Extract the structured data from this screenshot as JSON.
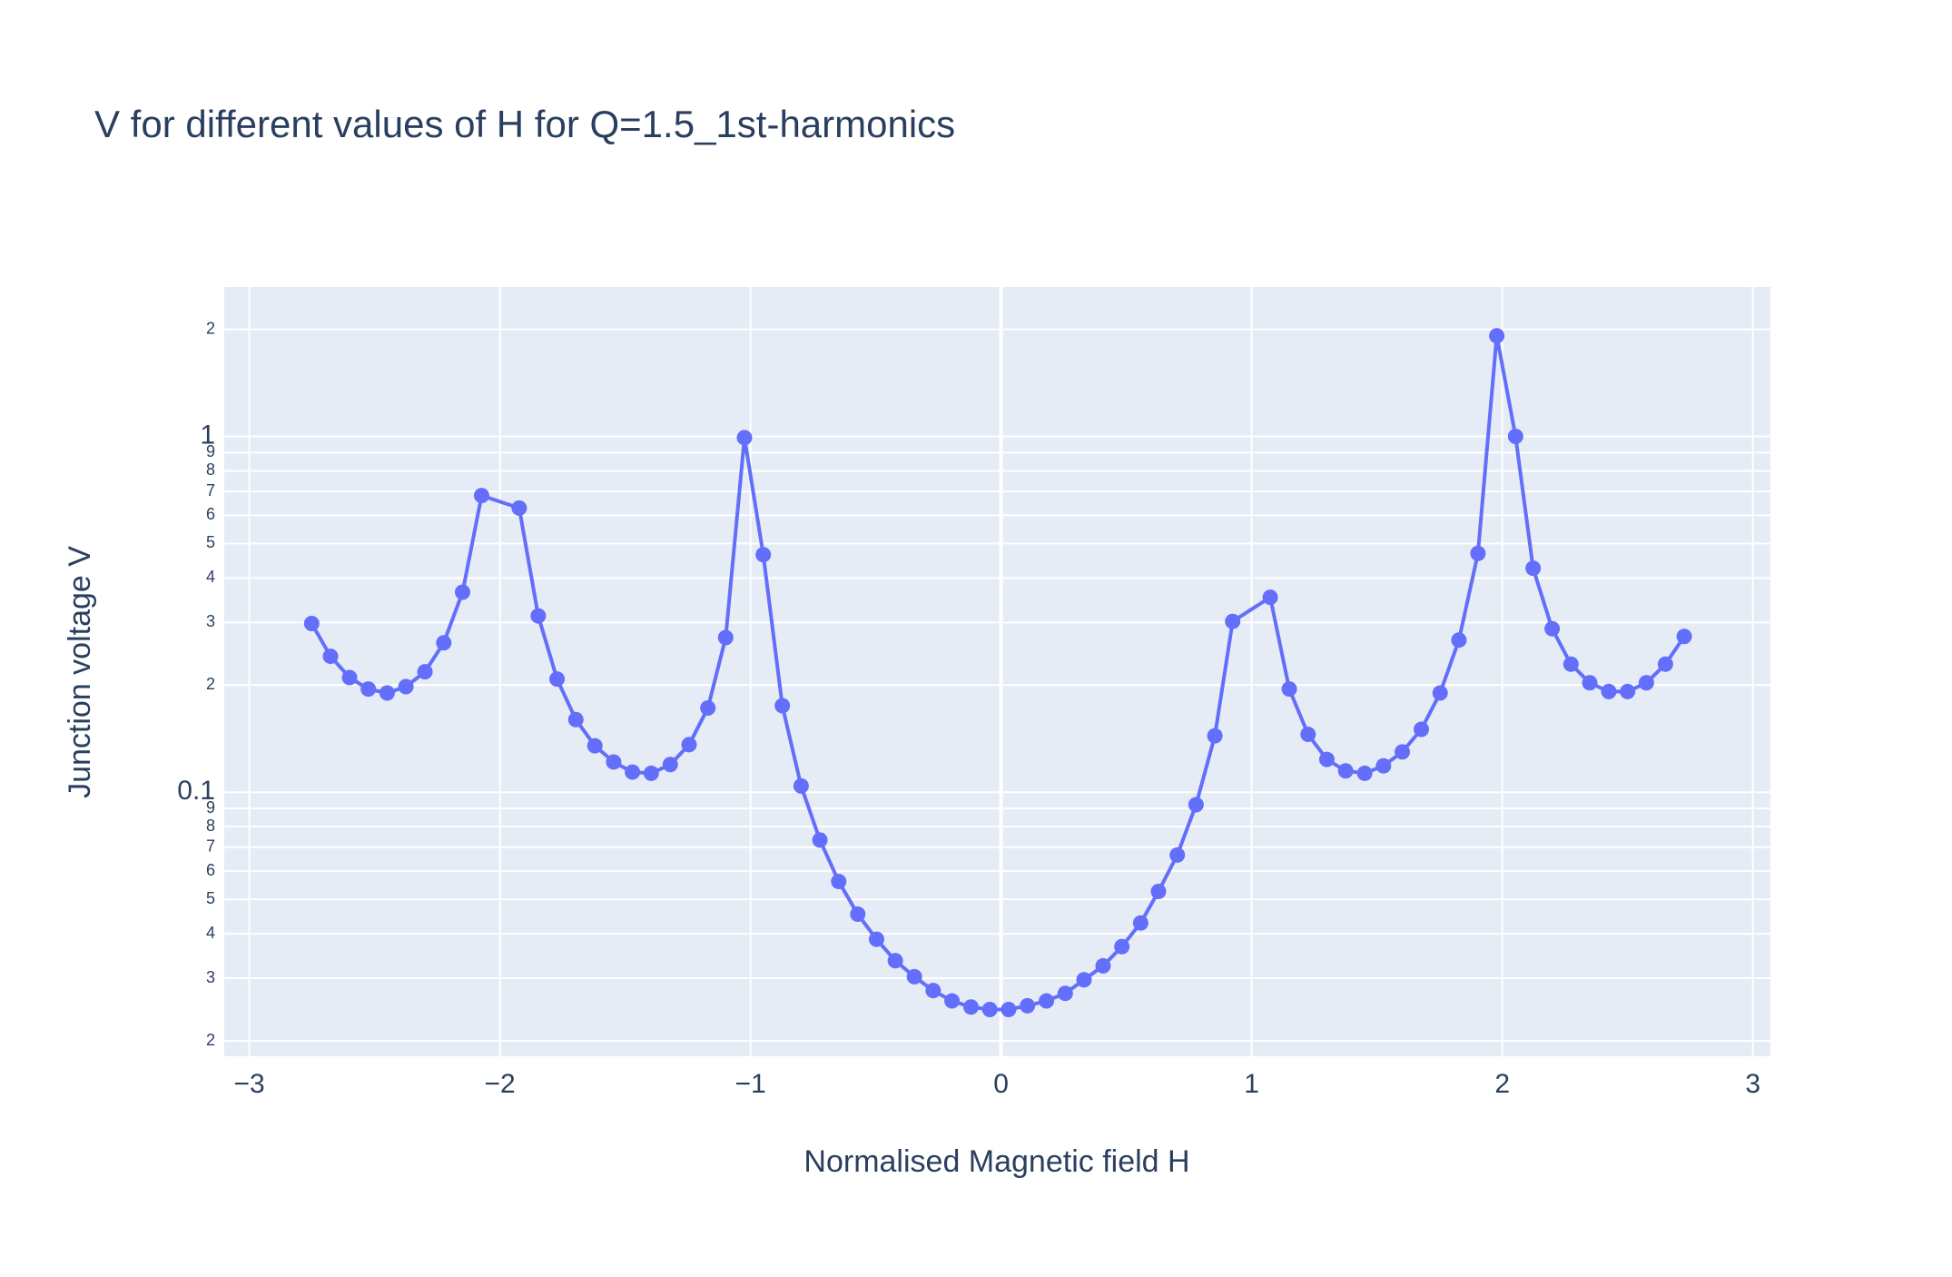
{
  "chart_data": {
    "type": "line",
    "title": "V for different values of H for Q=1.5_1st-harmonics",
    "x_label": "Normalised Magnetic field H",
    "y_label": "Junction voltage V",
    "color": "#636efa",
    "log_y": true,
    "grid": true,
    "xlim": [
      -3.1,
      3.07
    ],
    "ylim": [
      0.0181,
      2.63
    ],
    "xticks": [
      {
        "value": -3,
        "label": "−3"
      },
      {
        "value": -2,
        "label": "−2"
      },
      {
        "value": -1,
        "label": "−1"
      },
      0,
      1,
      2,
      3
    ],
    "yticks": [
      {
        "value": 0.02,
        "label": "2"
      },
      {
        "value": 0.03,
        "label": "3"
      },
      {
        "value": 0.04,
        "label": "4"
      },
      {
        "value": 0.05,
        "label": "5"
      },
      {
        "value": 0.06,
        "label": "6"
      },
      {
        "value": 0.07,
        "label": "7"
      },
      {
        "value": 0.08,
        "label": "8"
      },
      {
        "value": 0.09,
        "label": "9"
      },
      0.1,
      {
        "value": 0.2,
        "label": "2"
      },
      {
        "value": 0.3,
        "label": "3"
      },
      {
        "value": 0.4,
        "label": "4"
      },
      {
        "value": 0.5,
        "label": "5"
      },
      {
        "value": 0.6,
        "label": "6"
      },
      {
        "value": 0.7,
        "label": "7"
      },
      {
        "value": 0.8,
        "label": "8"
      },
      {
        "value": 0.9,
        "label": "9"
      },
      1,
      {
        "value": 2,
        "label": "2"
      }
    ],
    "x": [
      -2.751,
      -2.676,
      -2.6,
      -2.525,
      -2.45,
      -2.375,
      -2.299,
      -2.224,
      -2.149,
      -2.073,
      -1.923,
      -1.847,
      -1.772,
      -1.697,
      -1.621,
      -1.546,
      -1.471,
      -1.396,
      -1.32,
      -1.245,
      -1.17,
      -1.099,
      -1.024,
      -0.949,
      -0.873,
      -0.798,
      -0.723,
      -0.648,
      -0.572,
      -0.497,
      -0.422,
      -0.346,
      -0.271,
      -0.196,
      -0.12,
      -0.045,
      0.03,
      0.105,
      0.181,
      0.256,
      0.331,
      0.407,
      0.482,
      0.557,
      0.628,
      0.703,
      0.778,
      0.853,
      0.924,
      1.074,
      1.15,
      1.225,
      1.3,
      1.375,
      1.451,
      1.526,
      1.601,
      1.677,
      1.752,
      1.827,
      1.903,
      1.978,
      2.053,
      2.123,
      2.199,
      2.274,
      2.349,
      2.425,
      2.5,
      2.575,
      2.651,
      2.726
    ],
    "values": [
      0.298,
      0.241,
      0.21,
      0.195,
      0.19,
      0.198,
      0.218,
      0.263,
      0.365,
      0.682,
      0.629,
      0.313,
      0.208,
      0.16,
      0.135,
      0.1216,
      0.1139,
      0.113,
      0.1196,
      0.136,
      0.1725,
      0.272,
      0.992,
      0.465,
      0.175,
      0.1041,
      0.0734,
      0.0561,
      0.0454,
      0.0386,
      0.0336,
      0.0303,
      0.0277,
      0.0259,
      0.0249,
      0.0245,
      0.0245,
      0.0251,
      0.0259,
      0.0272,
      0.0297,
      0.0325,
      0.0368,
      0.0429,
      0.0526,
      0.0666,
      0.0922,
      0.144,
      0.302,
      0.353,
      0.195,
      0.1454,
      0.1236,
      0.1148,
      0.113,
      0.1186,
      0.1298,
      0.1502,
      0.19,
      0.2677,
      0.469,
      1.918,
      1.0,
      0.426,
      0.288,
      0.229,
      0.203,
      0.1918,
      0.1918,
      0.203,
      0.229,
      0.274
    ]
  }
}
